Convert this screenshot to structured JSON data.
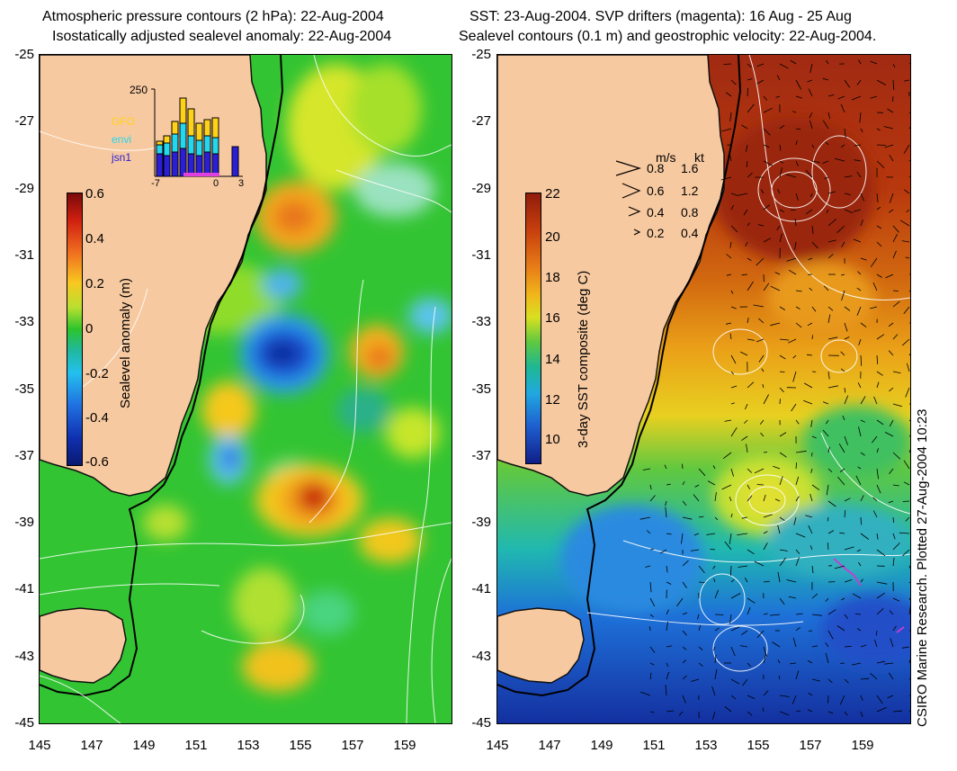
{
  "left_panel": {
    "title_line1": "Atmospheric pressure contours (2 hPa): 22-Aug-2004",
    "title_line2": "Isostatically adjusted sealevel anomaly: 22-Aug-2004",
    "colorbar": {
      "label": "Sealevel anomaly (m)",
      "ticks": [
        "0.6",
        "0.4",
        "0.2",
        "0",
        "-0.2",
        "-0.4",
        "-0.6"
      ]
    },
    "inset": {
      "ymax_label": "250",
      "xticks": [
        "-7",
        "0",
        "3"
      ],
      "legend": [
        {
          "name": "GFO",
          "color": "#ffd21a"
        },
        {
          "name": "envi",
          "color": "#24d6ee"
        },
        {
          "name": "jsn1",
          "color": "#2a1ed6"
        }
      ]
    }
  },
  "right_panel": {
    "title_line1": "SST: 23-Aug-2004. SVP drifters (magenta): 16 Aug - 25 Aug",
    "title_line2": "Sealevel contours (0.1 m) and geostrophic velocity: 22-Aug-2004.",
    "colorbar": {
      "label": "3-day SST composite (deg C)",
      "ticks": [
        "22",
        "20",
        "18",
        "16",
        "14",
        "12",
        "10"
      ]
    },
    "velocity_key": {
      "header_ms": "m/s",
      "header_kt": "kt",
      "rows": [
        {
          "ms": "0.8",
          "kt": "1.6"
        },
        {
          "ms": "0.6",
          "kt": "1.2"
        },
        {
          "ms": "0.4",
          "kt": "0.8"
        },
        {
          "ms": "0.2",
          "kt": "0.4"
        }
      ]
    }
  },
  "axes": {
    "lat_ticks": [
      "-25",
      "-27",
      "-29",
      "-31",
      "-33",
      "-35",
      "-37",
      "-39",
      "-41",
      "-43",
      "-45"
    ],
    "lon_ticks": [
      "145",
      "147",
      "149",
      "151",
      "153",
      "155",
      "157",
      "159"
    ]
  },
  "credit": "CSIRO Marine Research. Plotted 27-Aug-2004 10:23",
  "colors": {
    "land": "#f7c9a0",
    "ocean_green": "#2fc62f",
    "drifter_magenta": "#c040d0"
  }
}
